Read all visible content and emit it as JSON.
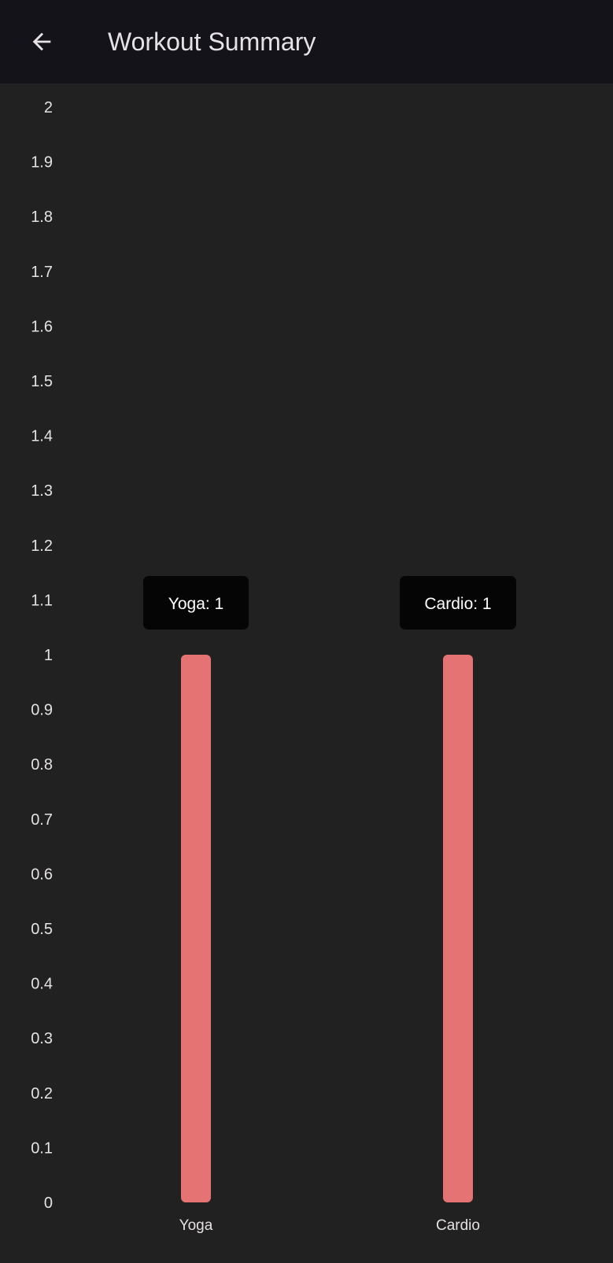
{
  "header": {
    "back_icon": "arrow-left-icon",
    "title": "Workout Summary"
  },
  "colors": {
    "appbar_bg": "#15131a",
    "page_bg": "#212121",
    "bar": "#e57373",
    "tooltip_bg": "#050505",
    "text": "#e6e1e5"
  },
  "chart_data": {
    "type": "bar",
    "categories": [
      "Yoga",
      "Cardio"
    ],
    "values": [
      1,
      1
    ],
    "ylim": [
      0,
      2
    ],
    "ytick_step": 0.1,
    "ytick_labels": [
      "0",
      "0.1",
      "0.2",
      "0.3",
      "0.4",
      "0.5",
      "0.6",
      "0.7",
      "0.8",
      "0.9",
      "1",
      "1.1",
      "1.2",
      "1.3",
      "1.4",
      "1.5",
      "1.6",
      "1.7",
      "1.8",
      "1.9",
      "2"
    ],
    "tooltips": [
      "Yoga: 1",
      "Cardio: 1"
    ],
    "grid": false,
    "legend": "none"
  }
}
